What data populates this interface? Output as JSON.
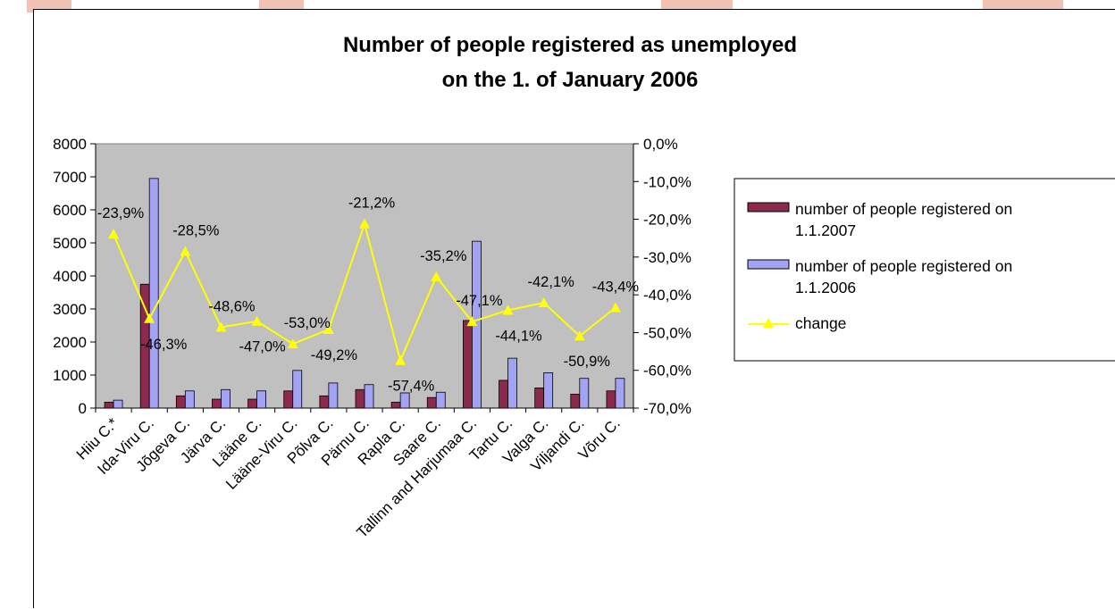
{
  "chart_data": {
    "type": "bar",
    "title_lines": [
      "Number of people registered as unemployed",
      "on the 1. of January 2006"
    ],
    "categories": [
      "Hiiu C.*",
      "Ida-Viru C.",
      "Jõgeva C.",
      "Järva C.",
      "Lääne C.",
      "Lääne-Viru C.",
      "Põlva C.",
      "Pärnu C.",
      "Rapla C.",
      "Saare C.",
      "Tallinn and Harjumaa C.",
      "Tartu C.",
      "Valga C.",
      "Viljandi C.",
      "Võru C."
    ],
    "series": [
      {
        "name_lines": [
          "number of people registered on",
          "1.1.2007"
        ],
        "kind": "bar",
        "axis": "left",
        "color": "#8b2a4c",
        "values": [
          180,
          3750,
          370,
          270,
          270,
          520,
          370,
          560,
          180,
          320,
          2650,
          840,
          610,
          420,
          520
        ]
      },
      {
        "name_lines": [
          " number of people registered on",
          "1.1.2006"
        ],
        "kind": "bar",
        "axis": "left",
        "color": "#a3a3f5",
        "values": [
          240,
          6950,
          520,
          560,
          520,
          1140,
          760,
          710,
          460,
          480,
          5050,
          1510,
          1070,
          900,
          900
        ]
      },
      {
        "name_lines": [
          "change"
        ],
        "kind": "line",
        "axis": "right",
        "color": "#ffff00",
        "values": [
          -23.9,
          -46.3,
          -28.5,
          -48.6,
          -47.0,
          -53.0,
          -49.2,
          -21.2,
          -57.4,
          -35.2,
          -47.1,
          -44.1,
          -42.1,
          -50.9,
          -43.4
        ],
        "labels": [
          "-23,9%",
          "-46,3%",
          "-28,5%",
          "-48,6%",
          "-47,0%",
          "-53,0%",
          "-49,2%",
          "-21,2%",
          "-57,4%",
          "-35,2%",
          "-47,1%",
          "-44,1%",
          "-42,1%",
          "-50,9%",
          "-43,4%"
        ]
      }
    ],
    "y_left": {
      "min": 0,
      "max": 8000,
      "step": 1000,
      "ticks": [
        "0",
        "1000",
        "2000",
        "3000",
        "4000",
        "5000",
        "6000",
        "7000",
        "8000"
      ]
    },
    "y_right": {
      "min": -70,
      "max": 0,
      "step": 10,
      "ticks": [
        "-70,0%",
        "-60,0%",
        "-50,0%",
        "-40,0%",
        "-30,0%",
        "-20,0%",
        "-10,0%",
        "0,0%"
      ]
    },
    "plot_background": "#c0c0c0",
    "grid": false,
    "legend_position": "right"
  }
}
